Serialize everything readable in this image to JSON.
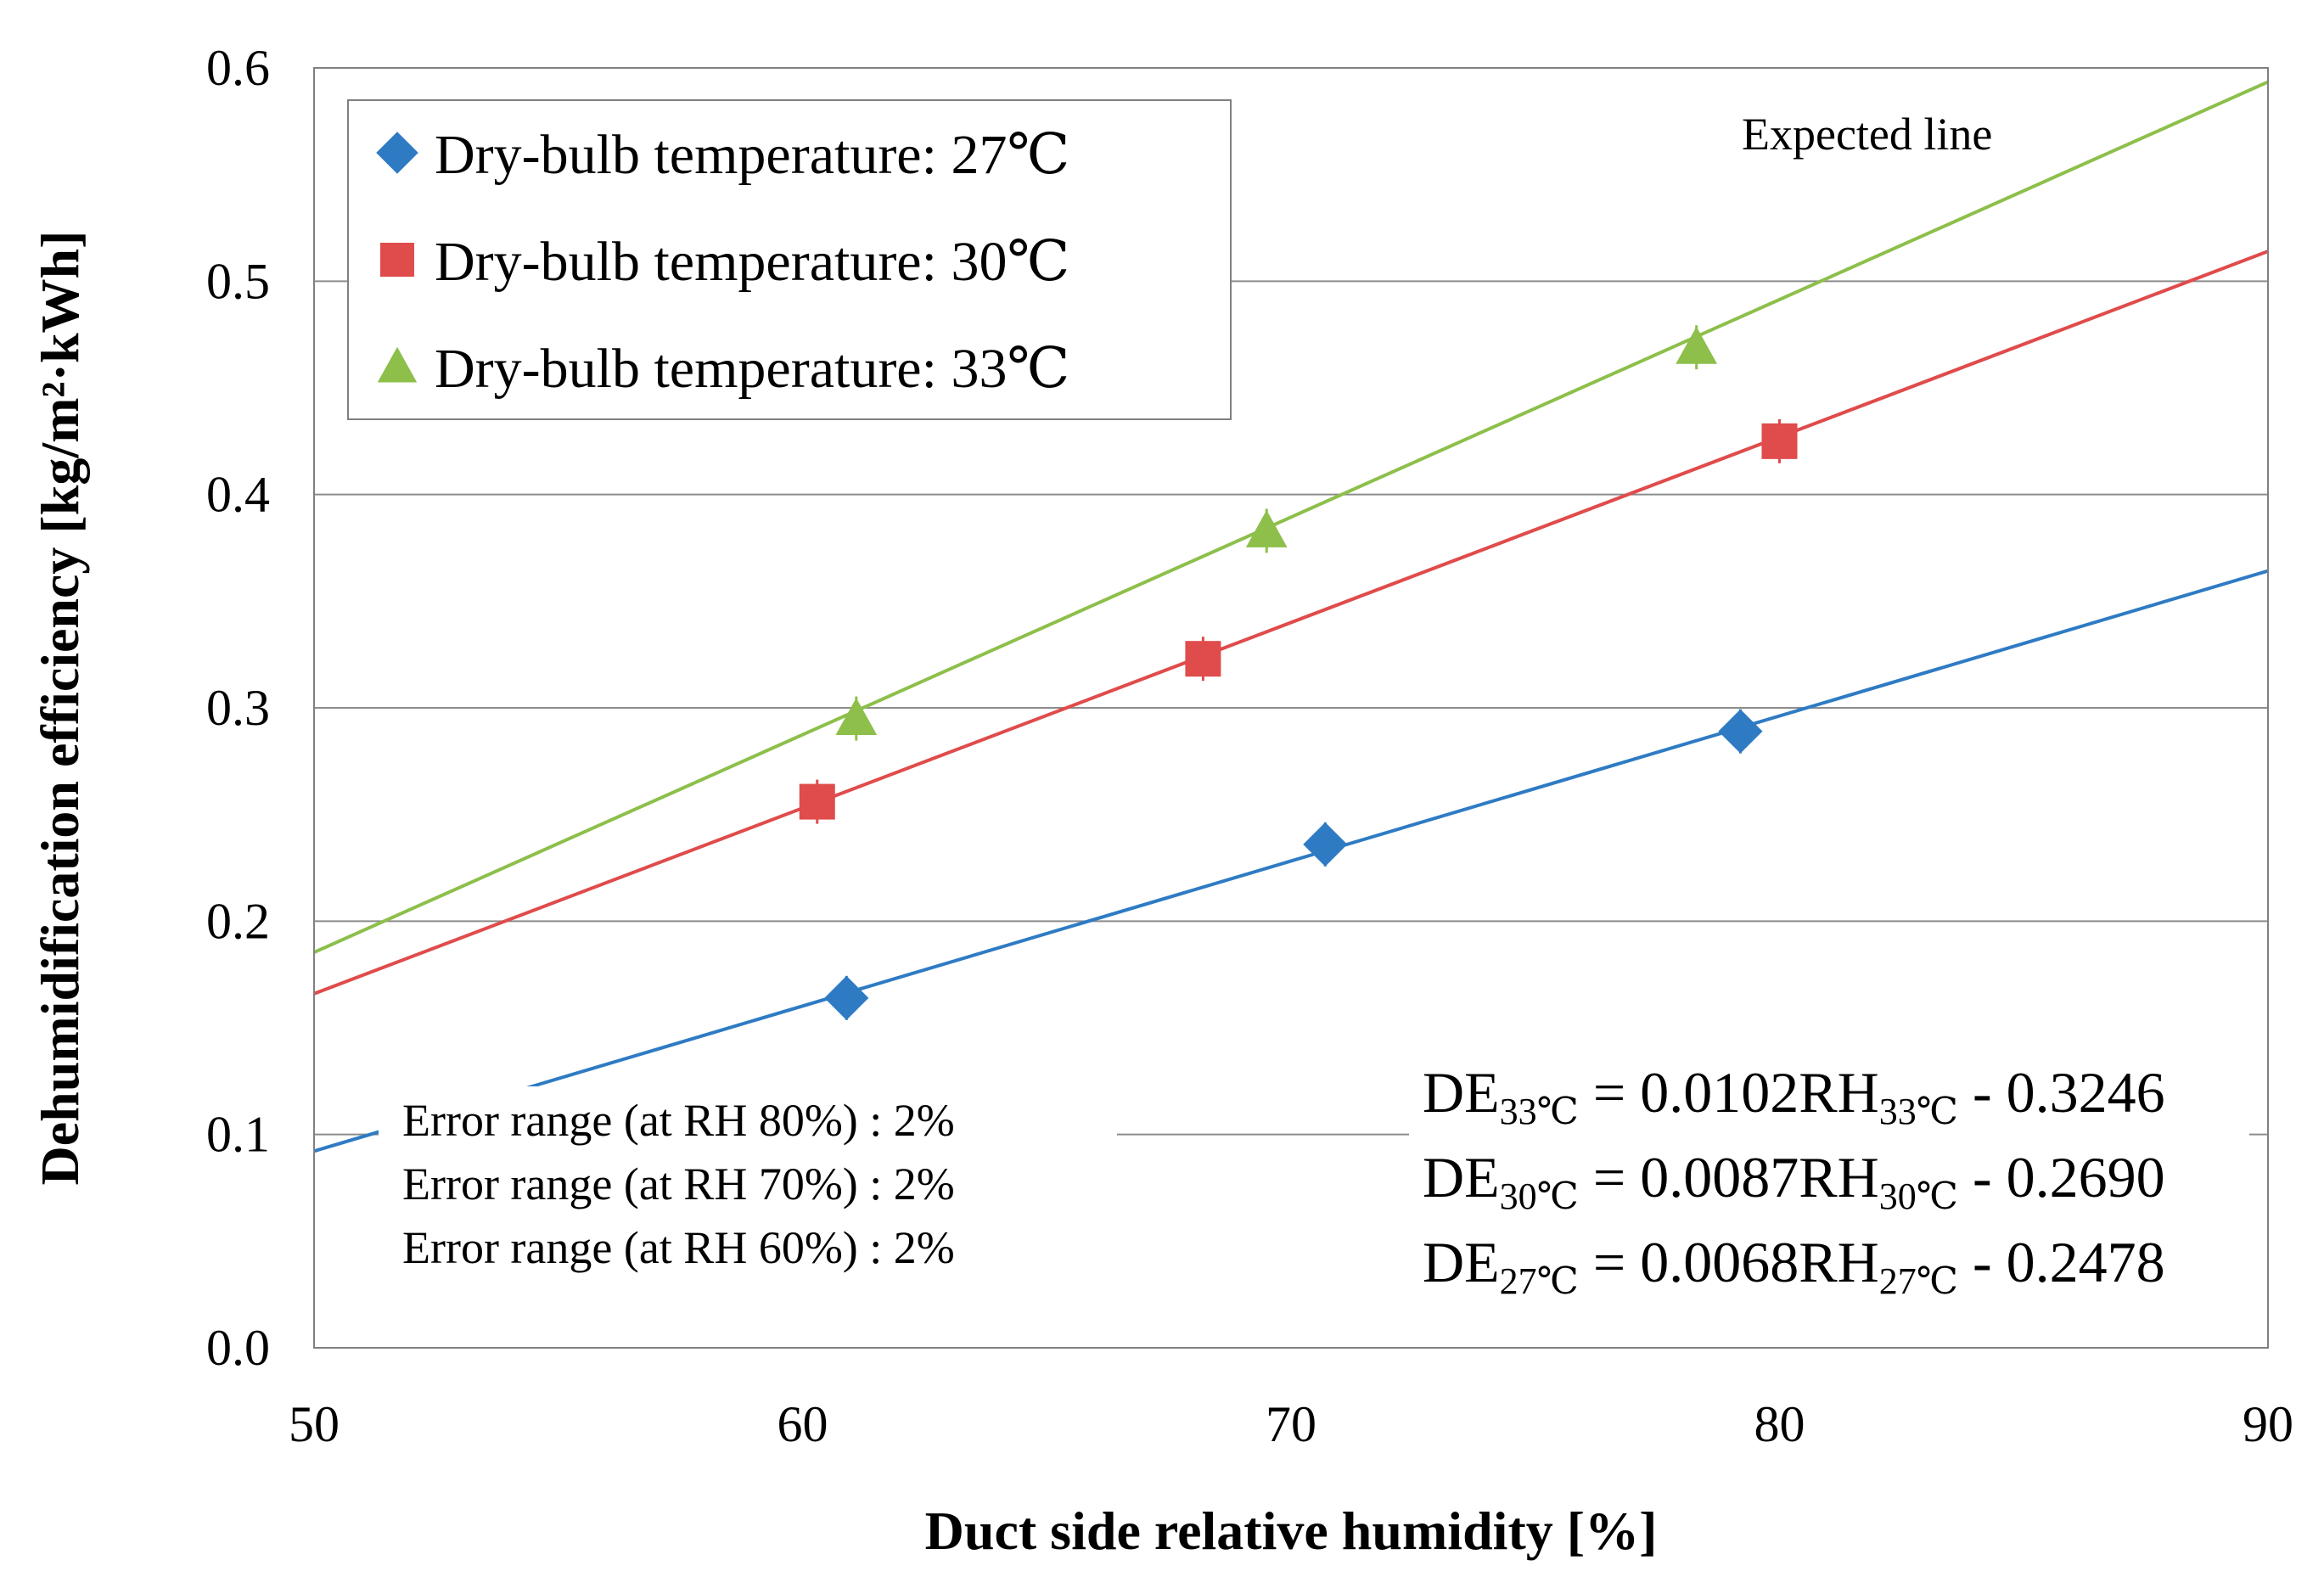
{
  "chart_data": {
    "type": "scatter",
    "xlabel": "Duct side relative humidity [%]",
    "ylabel": "Dehumidification efficiency [kg/m²·kWh]",
    "xlim": [
      50,
      90
    ],
    "ylim": [
      0.0,
      0.6
    ],
    "x_ticks": [
      "50",
      "60",
      "70",
      "80",
      "90"
    ],
    "y_ticks": [
      "0.0",
      "0.1",
      "0.2",
      "0.3",
      "0.4",
      "0.5",
      "0.6"
    ],
    "grid": "horizontal",
    "legend_position": "top-left",
    "series": [
      {
        "name": "Dry-bulb temperature: 27℃",
        "marker": "diamond",
        "color": "#2e7bc4",
        "points": [
          [
            60.9,
            0.164
          ],
          [
            70.7,
            0.236
          ],
          [
            79.2,
            0.289
          ]
        ],
        "fit": {
          "slope": 0.0068,
          "intercept": -0.2478
        }
      },
      {
        "name": "Dry-bulb temperature: 30℃",
        "marker": "square",
        "color": "#e04b4b",
        "points": [
          [
            60.3,
            0.256
          ],
          [
            68.2,
            0.323
          ],
          [
            80.0,
            0.425
          ]
        ],
        "fit": {
          "slope": 0.0087,
          "intercept": -0.269
        }
      },
      {
        "name": "Dry-bulb temperature: 33℃",
        "marker": "triangle",
        "color": "#8dbf4a",
        "points": [
          [
            61.1,
            0.295
          ],
          [
            69.5,
            0.383
          ],
          [
            78.3,
            0.469
          ]
        ],
        "fit": {
          "slope": 0.0102,
          "intercept": -0.3246
        }
      }
    ],
    "annotations": {
      "expected_line": "Expected line",
      "error_ranges": [
        "Error range (at RH 80%) : 2%",
        "Error range (at RH 70%) : 2%",
        "Error range (at RH 60%) : 2%"
      ],
      "equations": [
        {
          "lhs": "DE",
          "lhs_sub": "33℃",
          "mid": " = 0.0102RH",
          "rhs_sub": "33℃",
          "tail": " - 0.3246"
        },
        {
          "lhs": "DE",
          "lhs_sub": "30℃",
          "mid": " = 0.0087RH",
          "rhs_sub": "30℃",
          "tail": " - 0.2690"
        },
        {
          "lhs": "DE",
          "lhs_sub": "27℃",
          "mid": " = 0.0068RH",
          "rhs_sub": "27℃",
          "tail": " - 0.2478"
        }
      ]
    }
  }
}
